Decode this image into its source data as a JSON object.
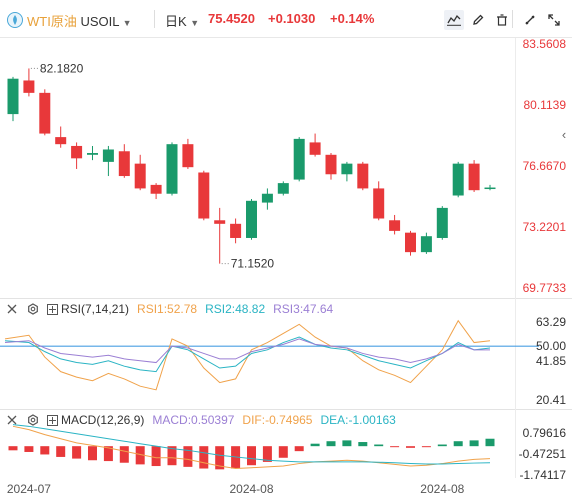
{
  "header": {
    "symbol_cn": "WTI原油",
    "symbol_code": "USOIL",
    "period": "日K",
    "price": "75.4520",
    "change": "+0.1030",
    "change_pct": "+0.14%"
  },
  "colors": {
    "up": "#e8383a",
    "down": "#1a9a6b",
    "line": "#4a9fe3"
  },
  "icons": [
    "price-line-icon",
    "pen-icon",
    "delete-icon",
    "tools-icon",
    "expand-icon",
    "close-icon",
    "chevron-left-icon",
    "close-panel-icon",
    "settings-icon",
    "visibility-icon"
  ],
  "chart_data": [
    {
      "type": "candlestick",
      "y_ticks": [
        "83.5608",
        "80.1139",
        "76.6670",
        "73.2201",
        "69.7733"
      ],
      "ylim": [
        69.7733,
        83.5608
      ],
      "x_tick_labels": [
        "2024-07",
        "2024-08",
        "2024-08"
      ],
      "annotations": [
        {
          "label": "82.1820",
          "kind": "high"
        },
        {
          "label": "71.1520",
          "kind": "low"
        }
      ],
      "candles": [
        {
          "o": 79.6,
          "h": 81.7,
          "l": 79.2,
          "c": 81.6
        },
        {
          "o": 81.5,
          "h": 82.18,
          "l": 80.6,
          "c": 80.8
        },
        {
          "o": 80.8,
          "h": 81.0,
          "l": 78.4,
          "c": 78.5
        },
        {
          "o": 78.3,
          "h": 78.9,
          "l": 77.7,
          "c": 77.9
        },
        {
          "o": 77.8,
          "h": 78.0,
          "l": 76.5,
          "c": 77.1
        },
        {
          "o": 77.3,
          "h": 77.8,
          "l": 77.0,
          "c": 77.4
        },
        {
          "o": 76.9,
          "h": 77.8,
          "l": 76.1,
          "c": 77.6
        },
        {
          "o": 77.5,
          "h": 77.9,
          "l": 76.0,
          "c": 76.1
        },
        {
          "o": 76.8,
          "h": 77.3,
          "l": 75.3,
          "c": 75.4
        },
        {
          "o": 75.6,
          "h": 75.7,
          "l": 74.8,
          "c": 75.1
        },
        {
          "o": 75.1,
          "h": 78.0,
          "l": 75.0,
          "c": 77.9
        },
        {
          "o": 77.9,
          "h": 78.2,
          "l": 76.5,
          "c": 76.6
        },
        {
          "o": 76.3,
          "h": 76.4,
          "l": 73.6,
          "c": 73.7
        },
        {
          "o": 73.6,
          "h": 74.3,
          "l": 71.15,
          "c": 73.4
        },
        {
          "o": 73.4,
          "h": 73.7,
          "l": 72.3,
          "c": 72.6
        },
        {
          "o": 72.6,
          "h": 74.8,
          "l": 72.5,
          "c": 74.7
        },
        {
          "o": 74.6,
          "h": 75.4,
          "l": 74.2,
          "c": 75.1
        },
        {
          "o": 75.1,
          "h": 75.8,
          "l": 75.0,
          "c": 75.7
        },
        {
          "o": 75.9,
          "h": 78.3,
          "l": 75.8,
          "c": 78.2
        },
        {
          "o": 78.0,
          "h": 78.5,
          "l": 77.2,
          "c": 77.3
        },
        {
          "o": 77.3,
          "h": 77.4,
          "l": 75.9,
          "c": 76.2
        },
        {
          "o": 76.2,
          "h": 76.9,
          "l": 75.8,
          "c": 76.8
        },
        {
          "o": 76.8,
          "h": 76.9,
          "l": 75.3,
          "c": 75.4
        },
        {
          "o": 75.4,
          "h": 75.8,
          "l": 73.6,
          "c": 73.7
        },
        {
          "o": 73.6,
          "h": 73.9,
          "l": 72.8,
          "c": 73.0
        },
        {
          "o": 72.9,
          "h": 73.0,
          "l": 71.6,
          "c": 71.8
        },
        {
          "o": 71.8,
          "h": 72.9,
          "l": 71.7,
          "c": 72.7
        },
        {
          "o": 72.6,
          "h": 74.4,
          "l": 72.5,
          "c": 74.3
        },
        {
          "o": 75.0,
          "h": 76.9,
          "l": 74.9,
          "c": 76.8
        },
        {
          "o": 76.8,
          "h": 77.0,
          "l": 75.2,
          "c": 75.3
        },
        {
          "o": 75.4,
          "h": 75.6,
          "l": 75.3,
          "c": 75.45
        }
      ]
    },
    {
      "type": "line",
      "indicator": "RSI(7,14,21)",
      "legend": [
        {
          "label": "RSI1:52.78",
          "color": "#f0a24a"
        },
        {
          "label": "RSI2:48.82",
          "color": "#2ab4c4"
        },
        {
          "label": "RSI3:47.64",
          "color": "#9b7fd4"
        }
      ],
      "y_ticks": [
        "63.29",
        "50.00",
        "41.85",
        "20.41"
      ],
      "ylim": [
        20.41,
        63.29
      ],
      "reference_line": 50.0,
      "series": [
        {
          "name": "RSI1",
          "values": [
            54,
            56,
            44,
            36,
            33,
            31,
            35,
            32,
            28,
            26,
            54,
            50,
            38,
            30,
            32,
            48,
            52,
            57,
            62,
            55,
            50,
            49,
            42,
            37,
            34,
            30,
            39,
            48,
            64,
            52,
            53
          ]
        },
        {
          "name": "RSI2",
          "values": [
            53,
            52,
            47,
            43,
            41,
            40,
            42,
            39,
            37,
            36,
            50,
            48,
            43,
            38,
            39,
            46,
            48,
            52,
            55,
            51,
            49,
            48,
            45,
            42,
            40,
            38,
            42,
            46,
            52,
            48,
            49
          ]
        },
        {
          "name": "RSI3",
          "values": [
            52,
            53,
            49,
            46,
            45,
            44,
            45,
            43,
            42,
            41,
            50,
            49,
            46,
            43,
            43,
            47,
            49,
            51,
            54,
            51,
            50,
            49,
            46,
            44,
            43,
            41,
            43,
            46,
            51,
            48,
            48
          ]
        }
      ]
    },
    {
      "type": "bar",
      "indicator": "MACD(12,26,9)",
      "legend": [
        {
          "label": "MACD:0.50397",
          "color": "#9b7fd4"
        },
        {
          "label": "DIF:-0.74965",
          "color": "#f0a24a"
        },
        {
          "label": "DEA:-1.00163",
          "color": "#2ab4c4"
        }
      ],
      "y_ticks": [
        "0.79616",
        "-0.47251",
        "-1.74117"
      ],
      "ylim": [
        -1.74117,
        0.79616
      ],
      "histogram": [
        -0.25,
        -0.35,
        -0.5,
        -0.65,
        -0.75,
        -0.85,
        -0.9,
        -1.0,
        -1.1,
        -1.2,
        -1.15,
        -1.25,
        -1.35,
        -1.4,
        -1.35,
        -1.15,
        -0.95,
        -0.7,
        -0.3,
        0.15,
        0.3,
        0.35,
        0.25,
        0.1,
        -0.05,
        -0.1,
        -0.05,
        0.1,
        0.3,
        0.35,
        0.45
      ],
      "series": [
        {
          "name": "DIF",
          "values": [
            1.2,
            1.0,
            0.7,
            0.45,
            0.2,
            0.05,
            -0.1,
            -0.3,
            -0.5,
            -0.7,
            -0.7,
            -0.8,
            -1.0,
            -1.2,
            -1.35,
            -1.3,
            -1.25,
            -1.2,
            -1.05,
            -0.95,
            -0.9,
            -0.85,
            -0.9,
            -1.0,
            -1.1,
            -1.2,
            -1.15,
            -1.05,
            -0.9,
            -0.8,
            -0.75
          ]
        },
        {
          "name": "DEA",
          "values": [
            1.3,
            1.2,
            1.05,
            0.9,
            0.75,
            0.6,
            0.45,
            0.3,
            0.15,
            0.0,
            -0.15,
            -0.25,
            -0.4,
            -0.55,
            -0.65,
            -0.75,
            -0.85,
            -0.9,
            -0.95,
            -0.95,
            -0.95,
            -0.95,
            -0.95,
            -0.97,
            -1.0,
            -1.05,
            -1.08,
            -1.08,
            -1.05,
            -1.02,
            -1.0
          ]
        }
      ]
    }
  ]
}
